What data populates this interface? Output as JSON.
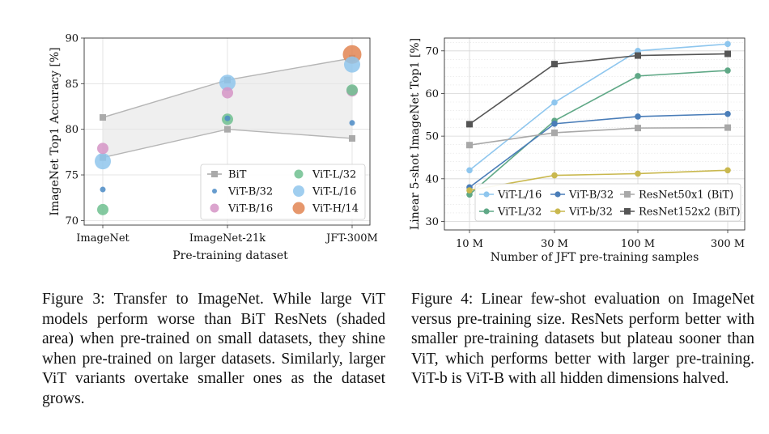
{
  "figure3": {
    "caption": "Figure 3:  Transfer to ImageNet.  While large ViT models perform worse than BiT ResNets (shaded area) when pre-trained on small datasets, they shine when pre-trained on larger datasets.  Similarly, larger ViT variants overtake smaller ones as the dataset grows.",
    "chart_data": {
      "type": "scatter",
      "xlabel": "Pre-training dataset",
      "ylabel": "ImageNet Top1 Accuracy [%]",
      "categories": [
        "ImageNet",
        "ImageNet-21k",
        "JFT-300M"
      ],
      "ylim": [
        69.5,
        90
      ],
      "yticks": [
        "70",
        "75",
        "80",
        "85",
        "90"
      ],
      "grid": true,
      "legend_position": "lower-right",
      "bit_band": {
        "upper": [
          81.3,
          85.4,
          87.8
        ],
        "lower": [
          76.9,
          80.0,
          79.0
        ]
      },
      "series": [
        {
          "name": "BiT",
          "marker": "square",
          "color": "#aaaaaa",
          "values": [
            81.3,
            85.4,
            87.8
          ],
          "values_lower": [
            76.9,
            80.0,
            79.0
          ]
        },
        {
          "name": "ViT-B/32",
          "marker": "circle",
          "size": "small",
          "color": "#4b8bc6",
          "values": [
            73.4,
            81.2,
            80.7
          ]
        },
        {
          "name": "ViT-B/16",
          "marker": "circle",
          "size": "medium",
          "color": "#d594c6",
          "values": [
            77.9,
            84.0,
            84.2
          ]
        },
        {
          "name": "ViT-L/32",
          "marker": "circle",
          "size": "medium",
          "color": "#6fbf8f",
          "values": [
            71.2,
            81.1,
            84.3
          ]
        },
        {
          "name": "ViT-L/16",
          "marker": "circle",
          "size": "large",
          "color": "#8fc6ec",
          "values": [
            76.5,
            85.1,
            87.1
          ]
        },
        {
          "name": "ViT-H/14",
          "marker": "circle",
          "size": "xlarge",
          "color": "#e28552",
          "values": [
            null,
            null,
            88.2
          ]
        }
      ]
    }
  },
  "figure4": {
    "caption": "Figure 4: Linear few-shot evaluation on ImageNet versus pre-training size. ResNets perform better with smaller pre-training datasets but plateau sooner than ViT, which performs better with larger pre-training. ViT-b is ViT-B with all hidden dimensions halved.",
    "chart_data": {
      "type": "line",
      "xlabel": "Number of JFT pre-training samples",
      "ylabel": "Linear 5-shot ImageNet Top1 [%]",
      "x": [
        "10 M",
        "30 M",
        "100 M",
        "300 M"
      ],
      "xscale": "log",
      "ylim": [
        28,
        73
      ],
      "yticks": [
        "30",
        "40",
        "50",
        "60",
        "70"
      ],
      "grid": true,
      "legend_position": "lower",
      "series": [
        {
          "name": "ViT-L/16",
          "marker": "circle",
          "color": "#8ec6ee",
          "values": [
            42.0,
            57.9,
            70.0,
            71.6
          ]
        },
        {
          "name": "ViT-L/32",
          "marker": "circle",
          "color": "#5fa886",
          "values": [
            36.3,
            53.6,
            64.1,
            65.4
          ]
        },
        {
          "name": "ViT-B/32",
          "marker": "circle",
          "color": "#4a7db8",
          "values": [
            38.0,
            52.9,
            54.6,
            55.2
          ]
        },
        {
          "name": "ViT-b/32",
          "marker": "circle",
          "color": "#c9b84e",
          "values": [
            37.3,
            40.8,
            41.2,
            42.0
          ]
        },
        {
          "name": "ResNet50x1 (BiT)",
          "marker": "square",
          "color": "#a8a8a8",
          "values": [
            47.9,
            50.8,
            51.9,
            52.0
          ]
        },
        {
          "name": "ResNet152x2 (BiT)",
          "marker": "square",
          "color": "#555555",
          "values": [
            52.8,
            66.9,
            68.9,
            69.3
          ]
        }
      ]
    }
  }
}
